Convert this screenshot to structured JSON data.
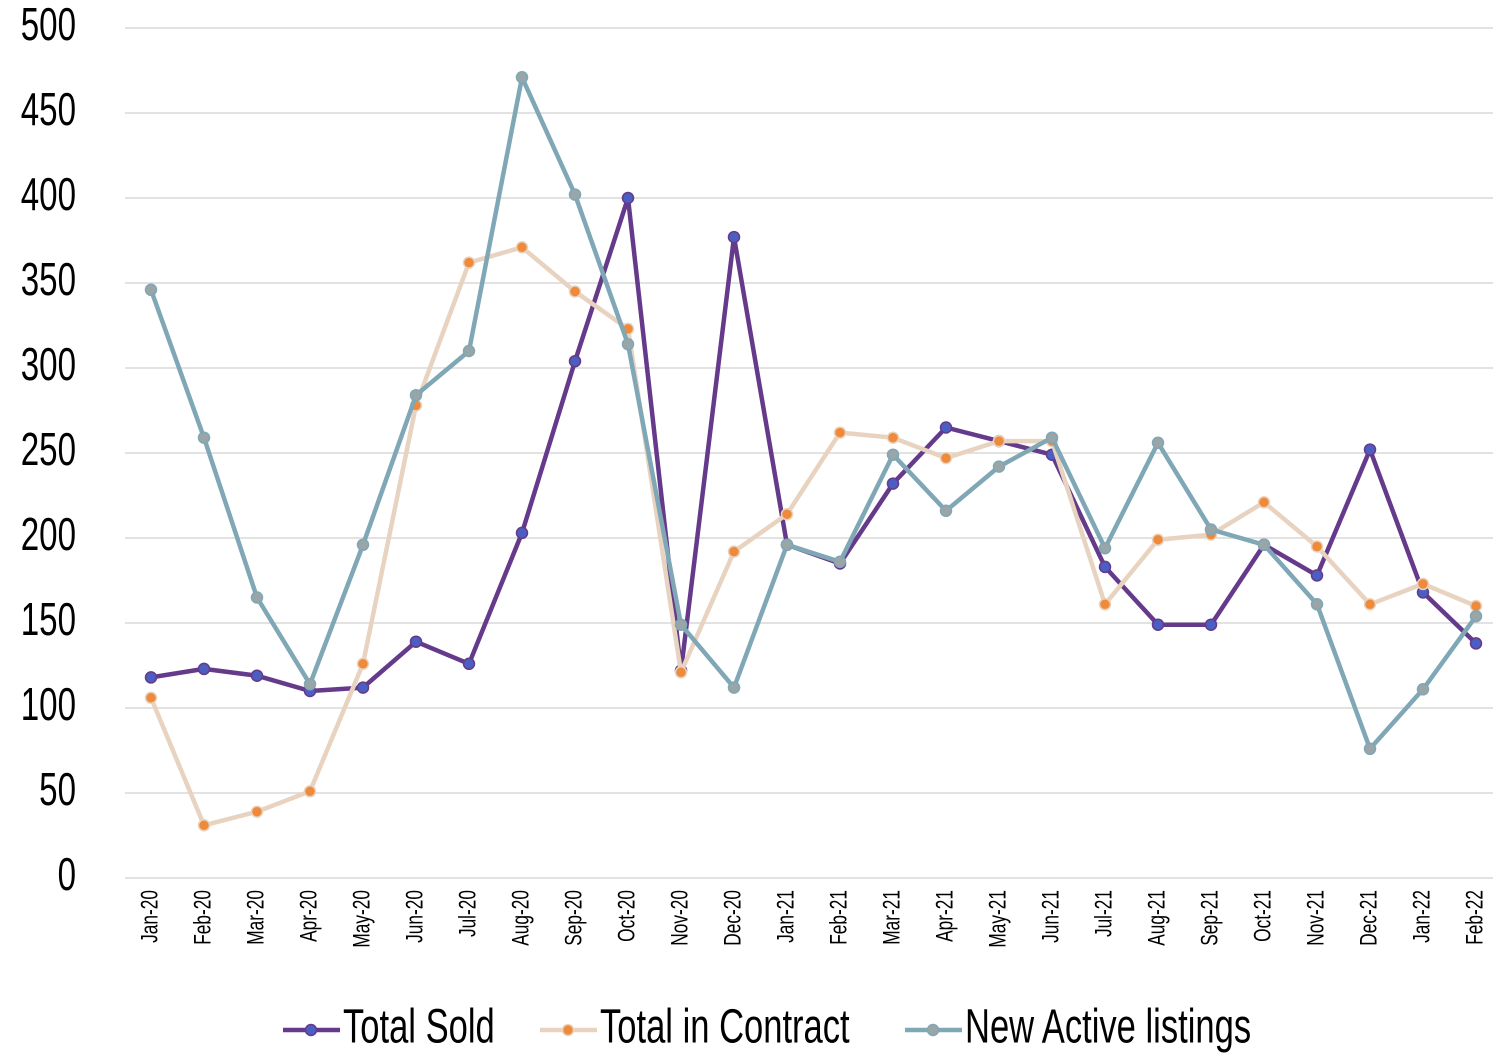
{
  "chart_data": {
    "type": "line",
    "categories": [
      "Jan-20",
      "Feb-20",
      "Mar-20",
      "Apr-20",
      "May-20",
      "Jun-20",
      "Jul-20",
      "Aug-20",
      "Sep-20",
      "Oct-20",
      "Nov-20",
      "Dec-20",
      "Jan-21",
      "Feb-21",
      "Mar-21",
      "Apr-21",
      "May-21",
      "Jun-21",
      "Jul-21",
      "Aug-21",
      "Sep-21",
      "Oct-21",
      "Nov-21",
      "Dec-21",
      "Jan-22",
      "Feb-22"
    ],
    "series": [
      {
        "name": "Total Sold",
        "color": "#653a8a",
        "marker_color": "#4a5fc1",
        "values": [
          118,
          123,
          119,
          110,
          112,
          139,
          126,
          203,
          304,
          400,
          122,
          377,
          196,
          185,
          232,
          265,
          257,
          249,
          183,
          149,
          149,
          196,
          178,
          252,
          168,
          138
        ]
      },
      {
        "name": "Total in Contract",
        "color": "#e8d3c0",
        "marker_color": "#ee8a3a",
        "values": [
          106,
          31,
          39,
          51,
          126,
          278,
          362,
          371,
          345,
          323,
          121,
          192,
          214,
          262,
          259,
          247,
          257,
          257,
          161,
          199,
          202,
          221,
          195,
          161,
          173,
          160
        ]
      },
      {
        "name": "New Active listings",
        "color": "#7fa7b5",
        "marker_color": "#9aa5a8",
        "values": [
          346,
          259,
          165,
          114,
          196,
          284,
          310,
          471,
          402,
          314,
          149,
          112,
          196,
          186,
          249,
          216,
          242,
          259,
          194,
          256,
          205,
          196,
          161,
          76,
          111,
          154
        ]
      }
    ],
    "ylim": [
      0,
      500
    ],
    "yticks": [
      0,
      50,
      100,
      150,
      200,
      250,
      300,
      350,
      400,
      450,
      500
    ],
    "grid": true,
    "legend": "bottom"
  }
}
